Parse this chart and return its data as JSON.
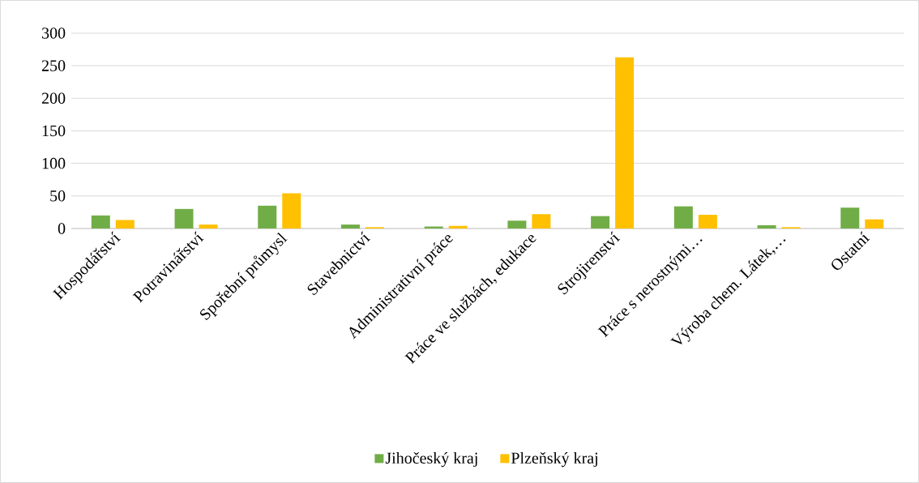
{
  "chart_data": {
    "type": "bar",
    "categories": [
      "Hospodářství",
      "Potravinářství",
      "Spořební průmysl",
      "Stavebnictví",
      "Administrativní práce",
      "Práce ve službách, edukace",
      "Strojirenství",
      "Práce s nerostnými…",
      "Výroba chem. Látek,…",
      "Ostatní"
    ],
    "series": [
      {
        "name": "Jihočeský kraj",
        "color": "#70ad47",
        "values": [
          20,
          30,
          35,
          6,
          3,
          12,
          19,
          34,
          5,
          32
        ]
      },
      {
        "name": "Plzeňský kraj",
        "color": "#ffc000",
        "values": [
          13,
          6,
          54,
          2,
          4,
          22,
          263,
          21,
          2,
          14
        ]
      }
    ],
    "ylim": [
      0,
      300
    ],
    "yticks": [
      0,
      50,
      100,
      150,
      200,
      250,
      300
    ],
    "grid": "y",
    "legend": "bottom"
  }
}
